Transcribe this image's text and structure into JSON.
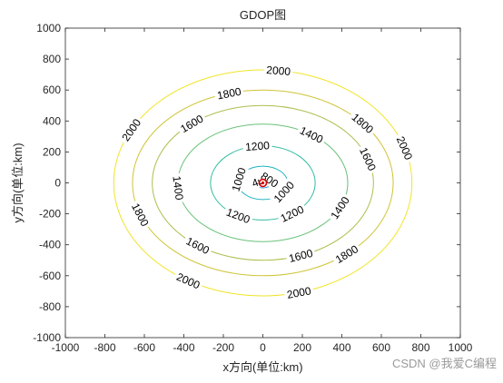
{
  "chart_data": {
    "type": "contour",
    "title": "GDOP图",
    "xlabel": "x方向(单位:km)",
    "ylabel": "y方向(单位:km)",
    "xlim": [
      -1000,
      1000
    ],
    "ylim": [
      -1000,
      1000
    ],
    "xticks": [
      -1000,
      -800,
      -600,
      -400,
      -200,
      0,
      200,
      400,
      600,
      800,
      1000
    ],
    "yticks": [
      -1000,
      -800,
      -600,
      -400,
      -200,
      0,
      200,
      400,
      600,
      800,
      1000
    ],
    "grid": false,
    "marker": {
      "x": 0,
      "y": 0,
      "color": "#e00000"
    },
    "levels": [
      {
        "value": 400,
        "rx": 22,
        "ry": 18,
        "color": "#3d6ff0",
        "labels": [
          {
            "text": "400",
            "angle": 120
          }
        ]
      },
      {
        "value": 800,
        "rx": 45,
        "ry": 32,
        "color": "#2a9fd8",
        "labels": [
          {
            "text": "800",
            "angle": 40
          }
        ]
      },
      {
        "value": 1000,
        "rx": 125,
        "ry": 108,
        "color": "#1fb3c2",
        "labels": [
          {
            "text": "1000",
            "angle": 168
          },
          {
            "text": "1000",
            "angle": -32
          }
        ]
      },
      {
        "value": 1200,
        "rx": 265,
        "ry": 240,
        "color": "#33bca0",
        "labels": [
          {
            "text": "1200",
            "angle": 96
          },
          {
            "text": "1200",
            "angle": -118
          },
          {
            "text": "1200",
            "angle": -56
          }
        ]
      },
      {
        "value": 1400,
        "rx": 430,
        "ry": 380,
        "color": "#6bc27a",
        "labels": [
          {
            "text": "1400",
            "angle": 55
          },
          {
            "text": "1400",
            "angle": 185
          },
          {
            "text": "1400",
            "angle": -25
          }
        ]
      },
      {
        "value": 1600,
        "rx": 560,
        "ry": 500,
        "color": "#a9c04e",
        "labels": [
          {
            "text": "1600",
            "angle": 130
          },
          {
            "text": "1600",
            "angle": 18
          },
          {
            "text": "1600",
            "angle": -126
          },
          {
            "text": "1600",
            "angle": -70
          }
        ]
      },
      {
        "value": 1800,
        "rx": 660,
        "ry": 600,
        "color": "#cfc437",
        "labels": [
          {
            "text": "1800",
            "angle": 105
          },
          {
            "text": "1800",
            "angle": 40
          },
          {
            "text": "1800",
            "angle": 200
          },
          {
            "text": "1800",
            "angle": -50
          }
        ]
      },
      {
        "value": 2000,
        "rx": 755,
        "ry": 730,
        "color": "#f1e428",
        "labels": [
          {
            "text": "2000",
            "angle": 84
          },
          {
            "text": "2000",
            "angle": 152
          },
          {
            "text": "2000",
            "angle": 18
          },
          {
            "text": "2000",
            "angle": -120
          },
          {
            "text": "2000",
            "angle": -76
          }
        ]
      }
    ]
  },
  "watermark": "CSDN @我爱C编程"
}
